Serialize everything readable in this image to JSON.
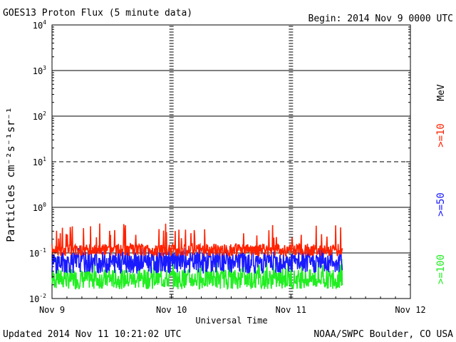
{
  "header": {
    "title": "GOES13 Proton Flux (5 minute data)",
    "begin": "Begin: 2014 Nov 9 0000 UTC"
  },
  "footer": {
    "updated": "Updated 2014 Nov 11 10:21:02 UTC",
    "source": "NOAA/SWPC Boulder, CO USA"
  },
  "colors": {
    "ge10": "#ff2200",
    "ge50": "#1a1aff",
    "ge100": "#22ee22",
    "axis": "#000000"
  },
  "chart_data": {
    "type": "line",
    "title": "GOES13 Proton Flux (5 minute data)",
    "xlabel": "Universal Time",
    "ylabel": "Particles cm⁻²s⁻¹sr⁻¹",
    "yscale": "log",
    "ylim": [
      0.01,
      10000
    ],
    "yticks": [
      {
        "base": "10",
        "exp": "4"
      },
      {
        "base": "10",
        "exp": "3"
      },
      {
        "base": "10",
        "exp": "2"
      },
      {
        "base": "10",
        "exp": "1"
      },
      {
        "base": "10",
        "exp": "0"
      },
      {
        "base": "10",
        "exp": "-1"
      },
      {
        "base": "10",
        "exp": "-2"
      }
    ],
    "xticks": [
      "Nov 9",
      "Nov 10",
      "Nov 11",
      "Nov 12"
    ],
    "xrange_days": [
      0,
      3
    ],
    "data_end_day": 2.43,
    "unit_label": "MeV",
    "series": [
      {
        "name": ">=10",
        "color": "#ff2200",
        "typical": 0.12,
        "min": 0.085,
        "max": 0.45
      },
      {
        "name": ">=50",
        "color": "#1a1aff",
        "typical": 0.065,
        "min": 0.035,
        "max": 0.14
      },
      {
        "name": ">=100",
        "color": "#22ee22",
        "typical": 0.028,
        "min": 0.016,
        "max": 0.075
      }
    ]
  }
}
